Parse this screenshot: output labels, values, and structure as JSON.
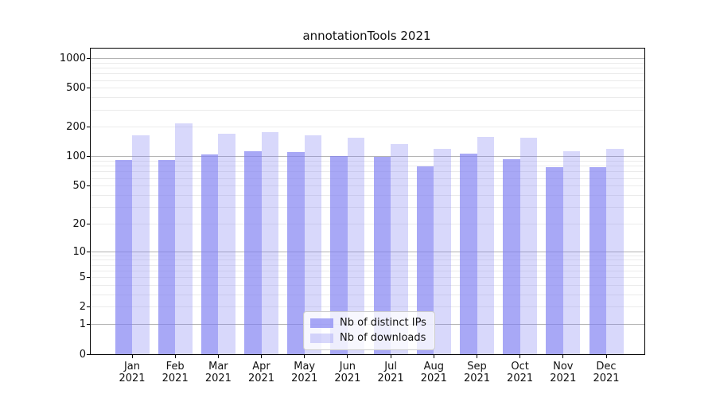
{
  "title": "annotationTools 2021",
  "legend": {
    "entries": [
      {
        "label": "Nb of distinct IPs",
        "color": "rgba(127,127,242,0.68)"
      },
      {
        "label": "Nb of downloads",
        "color": "rgba(127,127,242,0.30)"
      }
    ],
    "position": "lower center inside"
  },
  "colors": {
    "bar_base": "#7f7ff2",
    "series1": "rgba(127,127,242,0.68)",
    "series2": "rgba(127,127,242,0.30)",
    "grid_major": "#b3b3b3",
    "grid_minor": "#ebebeb",
    "spine": "#000000",
    "text": "#111111"
  },
  "chart_data": {
    "type": "bar",
    "title": "annotationTools 2021",
    "xlabel": "",
    "ylabel": "",
    "yscale": "log1p",
    "ylim": [
      0,
      1260
    ],
    "grid": "both",
    "legend_position": "lower center",
    "yticks": [
      0,
      1,
      2,
      5,
      10,
      20,
      50,
      100,
      200,
      500,
      1000
    ],
    "ytick_labels": [
      "0",
      "1",
      "2",
      "5",
      "10",
      "20",
      "50",
      "100",
      "200",
      "500",
      "1000"
    ],
    "categories": [
      "Jan 2021",
      "Feb 2021",
      "Mar 2021",
      "Apr 2021",
      "May 2021",
      "Jun 2021",
      "Jul 2021",
      "Aug 2021",
      "Sep 2021",
      "Oct 2021",
      "Nov 2021",
      "Dec 2021"
    ],
    "series": [
      {
        "name": "Nb of distinct IPs",
        "color": "rgba(127,127,242,0.68)",
        "values": [
          93,
          92,
          105,
          113,
          112,
          101,
          100,
          79,
          108,
          94,
          78,
          78
        ]
      },
      {
        "name": "Nb of downloads",
        "color": "rgba(127,127,242,0.30)",
        "values": [
          166,
          219,
          173,
          180,
          166,
          157,
          136,
          120,
          159,
          157,
          114,
          121
        ]
      }
    ]
  }
}
